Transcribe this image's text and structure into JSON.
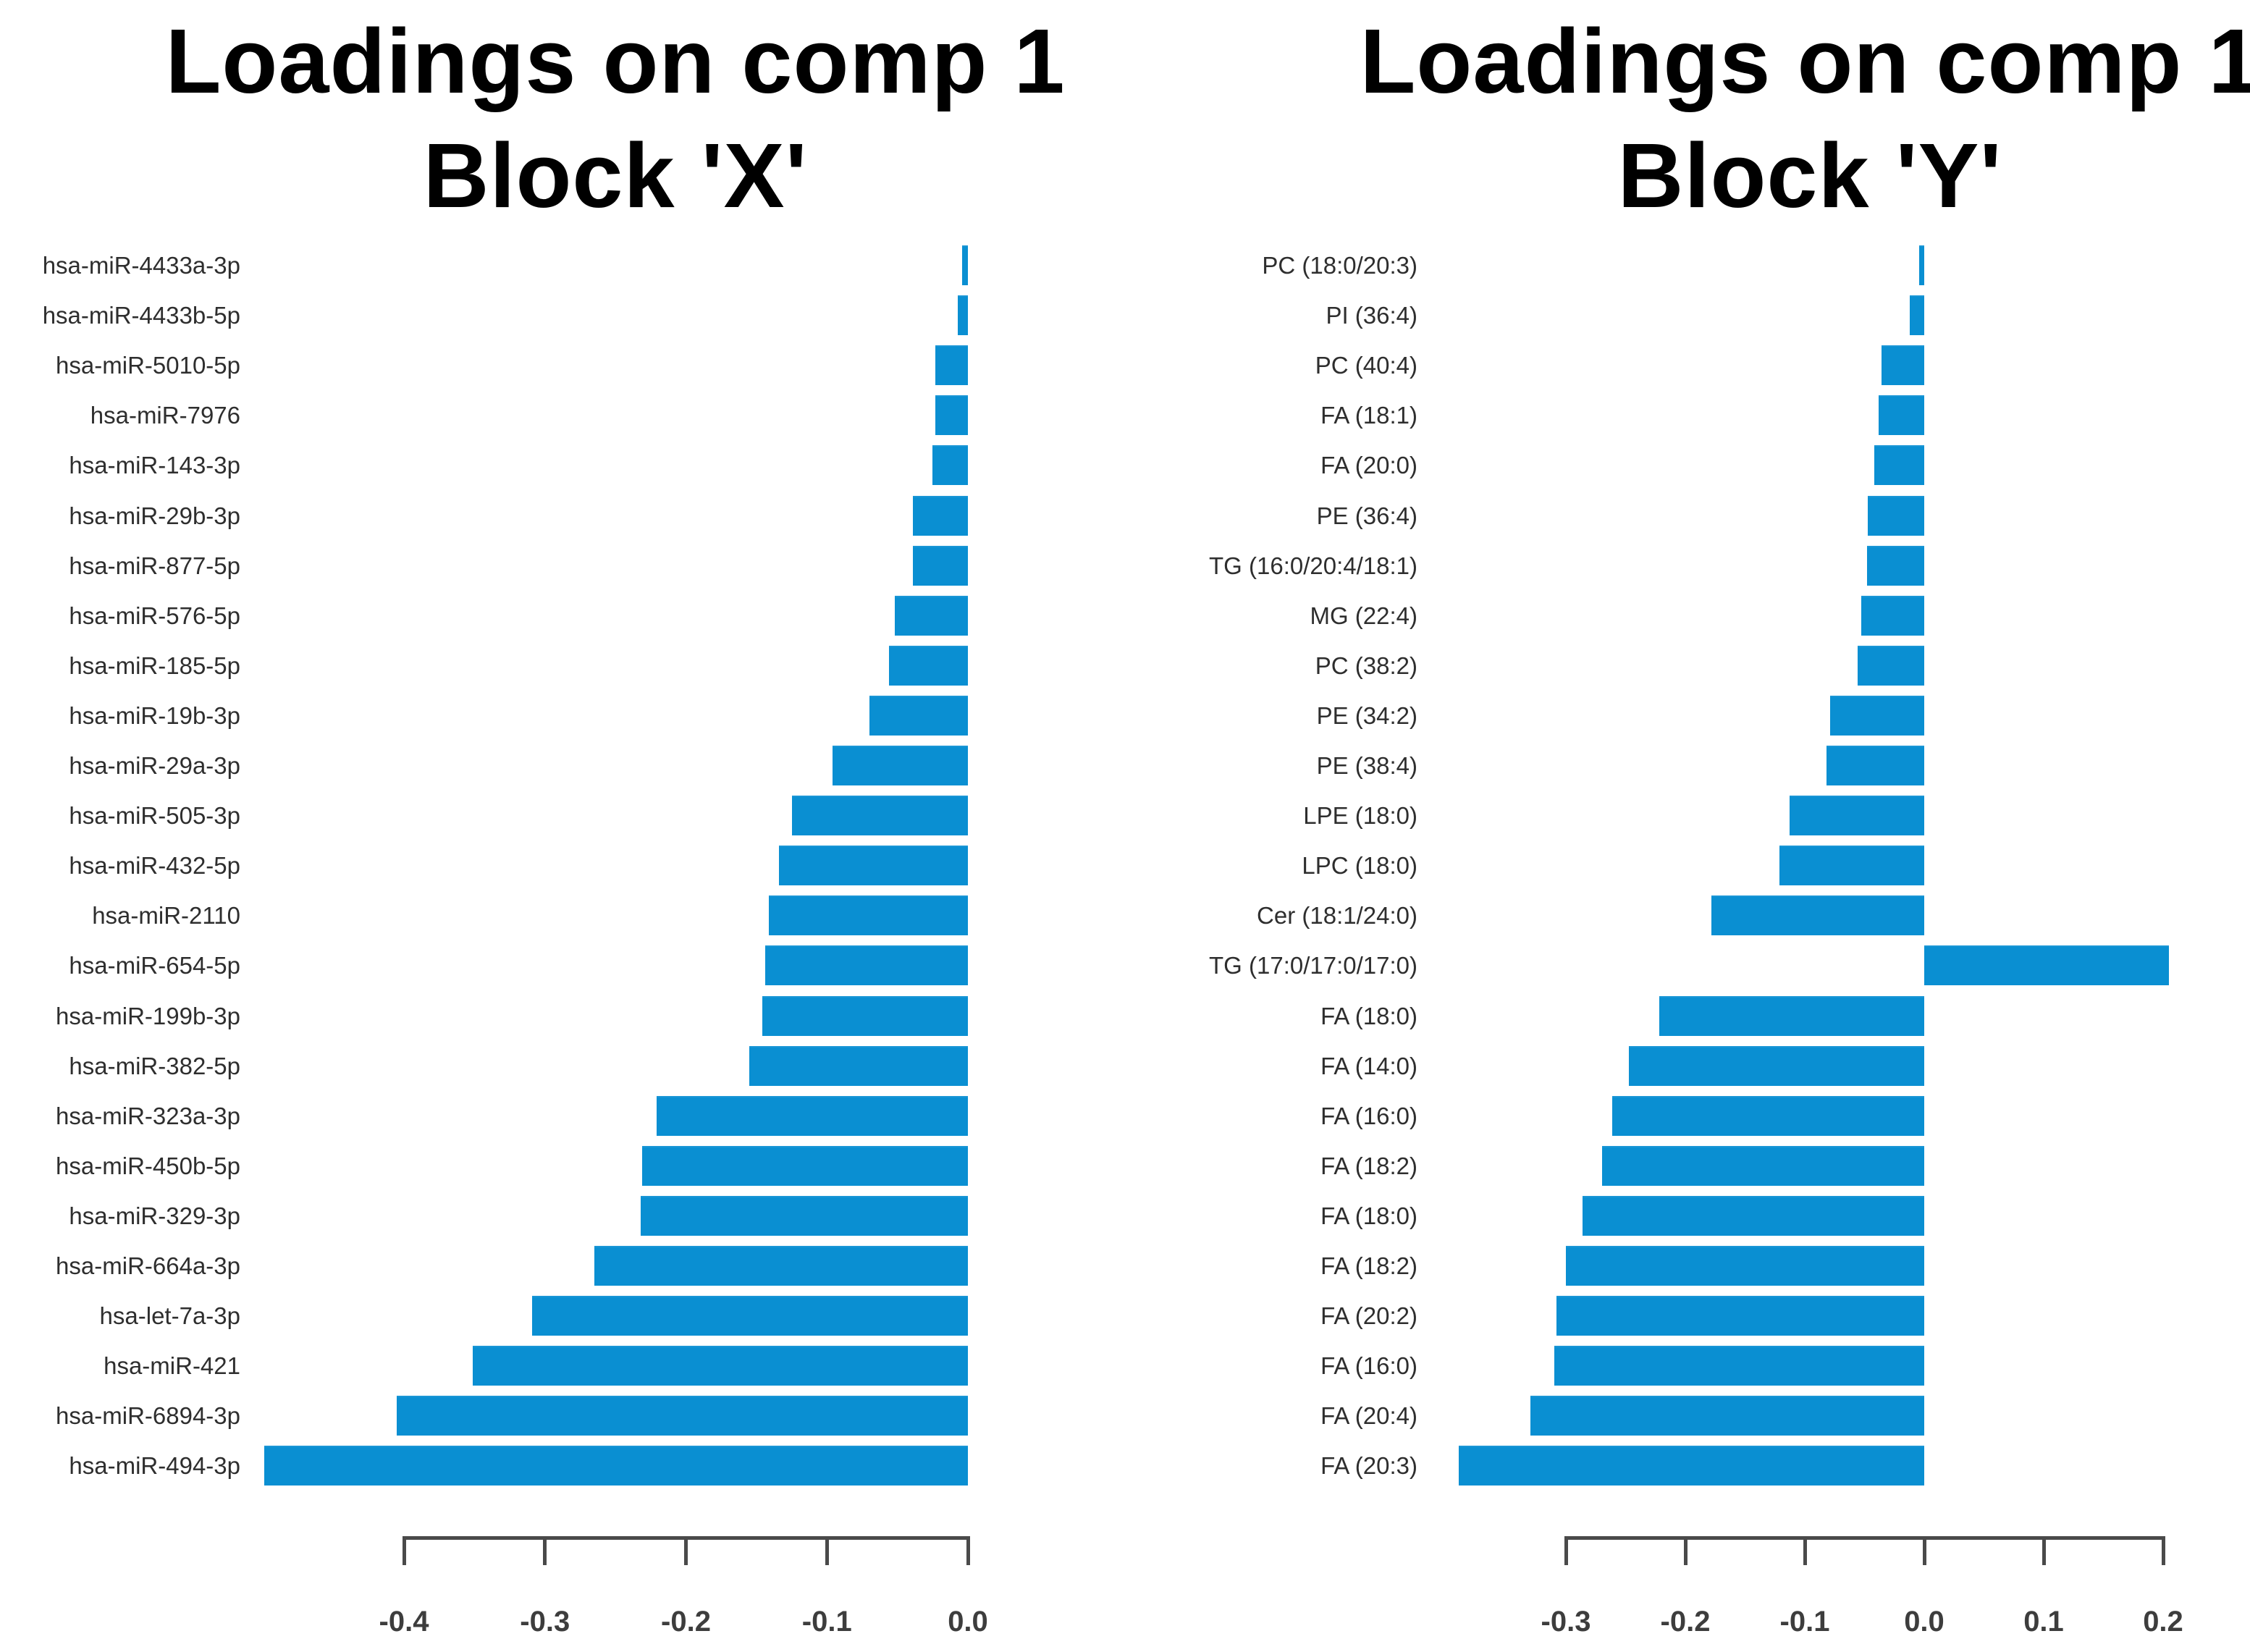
{
  "figure": {
    "background": "#ffffff",
    "bar_color": "#0a8fd2",
    "bar_edge_color": "#58b4e4",
    "axis_color": "#4a4a4a",
    "title_color": "#000000",
    "label_color": "#2e2e2e"
  },
  "chart_data": [
    {
      "type": "bar",
      "orientation": "horizontal",
      "title": "Loadings on comp 1",
      "subtitle": "Block 'X'",
      "xlabel": "",
      "ylabel": "",
      "xlim": [
        -0.5,
        0.0
      ],
      "grid": false,
      "legend": "none",
      "xticks": [
        -0.4,
        -0.3,
        -0.2,
        -0.1,
        0.0
      ],
      "xtick_labels": [
        "-0.4",
        "-0.3",
        "-0.2",
        "-0.1",
        "0.0"
      ],
      "categories": [
        "hsa-miR-4433a-3p",
        "hsa-miR-4433b-5p",
        "hsa-miR-5010-5p",
        "hsa-miR-7976",
        "hsa-miR-143-3p",
        "hsa-miR-29b-3p",
        "hsa-miR-877-5p",
        "hsa-miR-576-5p",
        "hsa-miR-185-5p",
        "hsa-miR-19b-3p",
        "hsa-miR-29a-3p",
        "hsa-miR-505-3p",
        "hsa-miR-432-5p",
        "hsa-miR-2110",
        "hsa-miR-654-5p",
        "hsa-miR-199b-3p",
        "hsa-miR-382-5p",
        "hsa-miR-323a-3p",
        "hsa-miR-450b-5p",
        "hsa-miR-329-3p",
        "hsa-miR-664a-3p",
        "hsa-let-7a-3p",
        "hsa-miR-421",
        "hsa-miR-6894-3p",
        "hsa-miR-494-3p"
      ],
      "values": [
        -0.004,
        -0.007,
        -0.023,
        -0.023,
        -0.025,
        -0.039,
        -0.039,
        -0.052,
        -0.056,
        -0.07,
        -0.096,
        -0.125,
        -0.134,
        -0.141,
        -0.144,
        -0.146,
        -0.155,
        -0.221,
        -0.231,
        -0.232,
        -0.265,
        -0.309,
        -0.351,
        -0.405,
        -0.499
      ]
    },
    {
      "type": "bar",
      "orientation": "horizontal",
      "title": "Loadings on comp 1",
      "subtitle": "Block 'Y'",
      "xlabel": "",
      "ylabel": "",
      "xlim": [
        -0.4,
        0.22
      ],
      "grid": false,
      "legend": "none",
      "xticks": [
        -0.3,
        -0.2,
        -0.1,
        0.0,
        0.1,
        0.2
      ],
      "xtick_labels": [
        "-0.3",
        "-0.2",
        "-0.1",
        "0.0",
        "0.1",
        "0.2"
      ],
      "categories": [
        "PC (18:0/20:3)",
        "PI (36:4)",
        "PC (40:4)",
        "FA (18:1)",
        "FA (20:0)",
        "PE (36:4)",
        "TG (16:0/20:4/18:1)",
        "MG (22:4)",
        "PC (38:2)",
        "PE (34:2)",
        "PE (38:4)",
        "LPE (18:0)",
        "LPC (18:0)",
        "Cer (18:1/24:0)",
        "TG (17:0/17:0/17:0)",
        "FA (18:0)",
        "FA (14:0)",
        "FA (16:0)",
        "FA (18:2)",
        "FA (18:0)",
        "FA (18:2)",
        "FA (20:2)",
        "FA (16:0)",
        "FA (20:4)",
        "FA (20:3)"
      ],
      "values": [
        -0.004,
        -0.012,
        -0.036,
        -0.038,
        -0.042,
        -0.047,
        -0.048,
        -0.053,
        -0.056,
        -0.079,
        -0.082,
        -0.113,
        -0.121,
        -0.178,
        0.205,
        -0.222,
        -0.247,
        -0.261,
        -0.27,
        -0.286,
        -0.3,
        -0.308,
        -0.31,
        -0.33,
        -0.39
      ]
    }
  ]
}
